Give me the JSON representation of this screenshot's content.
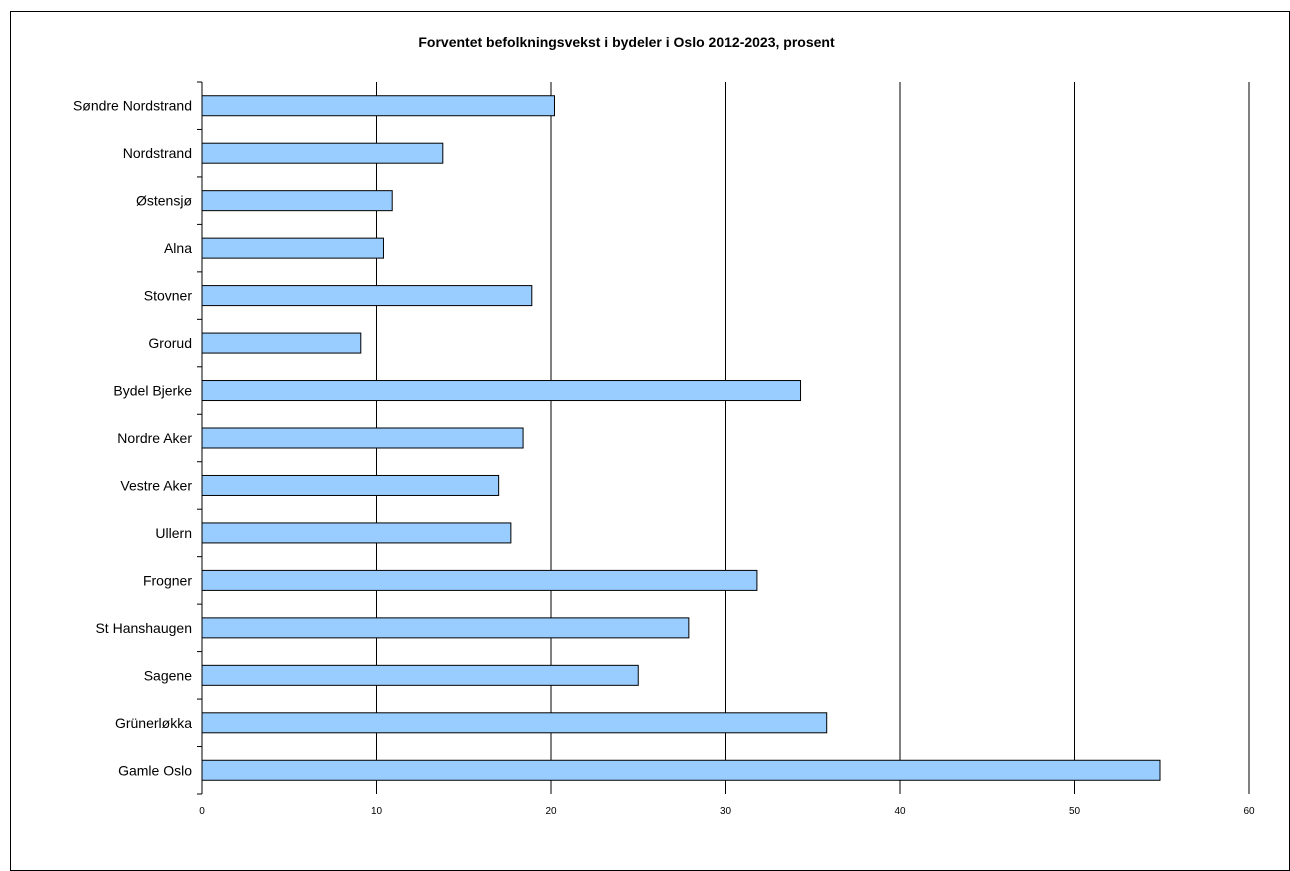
{
  "chart_data": {
    "type": "bar",
    "orientation": "horizontal",
    "title": "Forventet befolkningsvekst i bydeler i Oslo 2012-2023, prosent",
    "xlabel": "",
    "ylabel": "",
    "categories": [
      "Søndre Nordstrand",
      "Nordstrand",
      "Østensjø",
      "Alna",
      "Stovner",
      "Grorud",
      "Bydel Bjerke",
      "Nordre Aker",
      "Vestre Aker",
      "Ullern",
      "Frogner",
      "St Hanshaugen",
      "Sagene",
      "Grünerløkka",
      "Gamle Oslo"
    ],
    "values": [
      20.2,
      13.8,
      10.9,
      10.4,
      18.9,
      9.1,
      34.3,
      18.4,
      17.0,
      17.7,
      31.8,
      27.9,
      25.0,
      35.8,
      54.9
    ],
    "xlim": [
      0,
      60
    ],
    "xticks": [
      "0",
      "10",
      "20",
      "30",
      "40",
      "50",
      "60"
    ],
    "grid": "vertical major gridlines",
    "legend": "none",
    "colors": {
      "bar_fill": "#99CCFF",
      "bar_stroke": "#000000",
      "grid": "#000000",
      "background": "#FFFFFF"
    }
  }
}
